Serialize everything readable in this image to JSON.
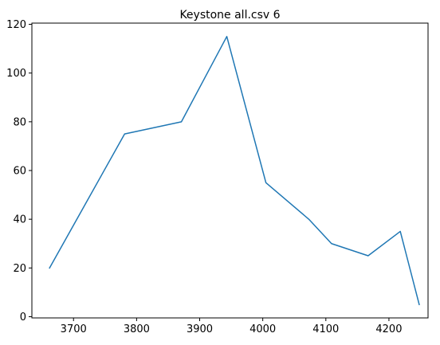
{
  "chart_data": {
    "type": "line",
    "title": "Keystone all.csv 6",
    "xlabel": "",
    "ylabel": "",
    "xlim": [
      3634,
      4262
    ],
    "ylim": [
      -0.5,
      120.5
    ],
    "xticks": [
      3700,
      3800,
      3900,
      4000,
      4100,
      4200
    ],
    "yticks": [
      0,
      20,
      40,
      60,
      80,
      100,
      120
    ],
    "grid": false,
    "series": [
      {
        "color": "#1f77b4",
        "x": [
          3662,
          3781,
          3871,
          3943,
          4005,
          4073,
          4109,
          4167,
          4218,
          4248
        ],
        "y": [
          20,
          75,
          80,
          115,
          55,
          40,
          30,
          25,
          35,
          5
        ]
      }
    ]
  },
  "colors": {
    "background": "#ffffff",
    "axis": "#000000"
  }
}
